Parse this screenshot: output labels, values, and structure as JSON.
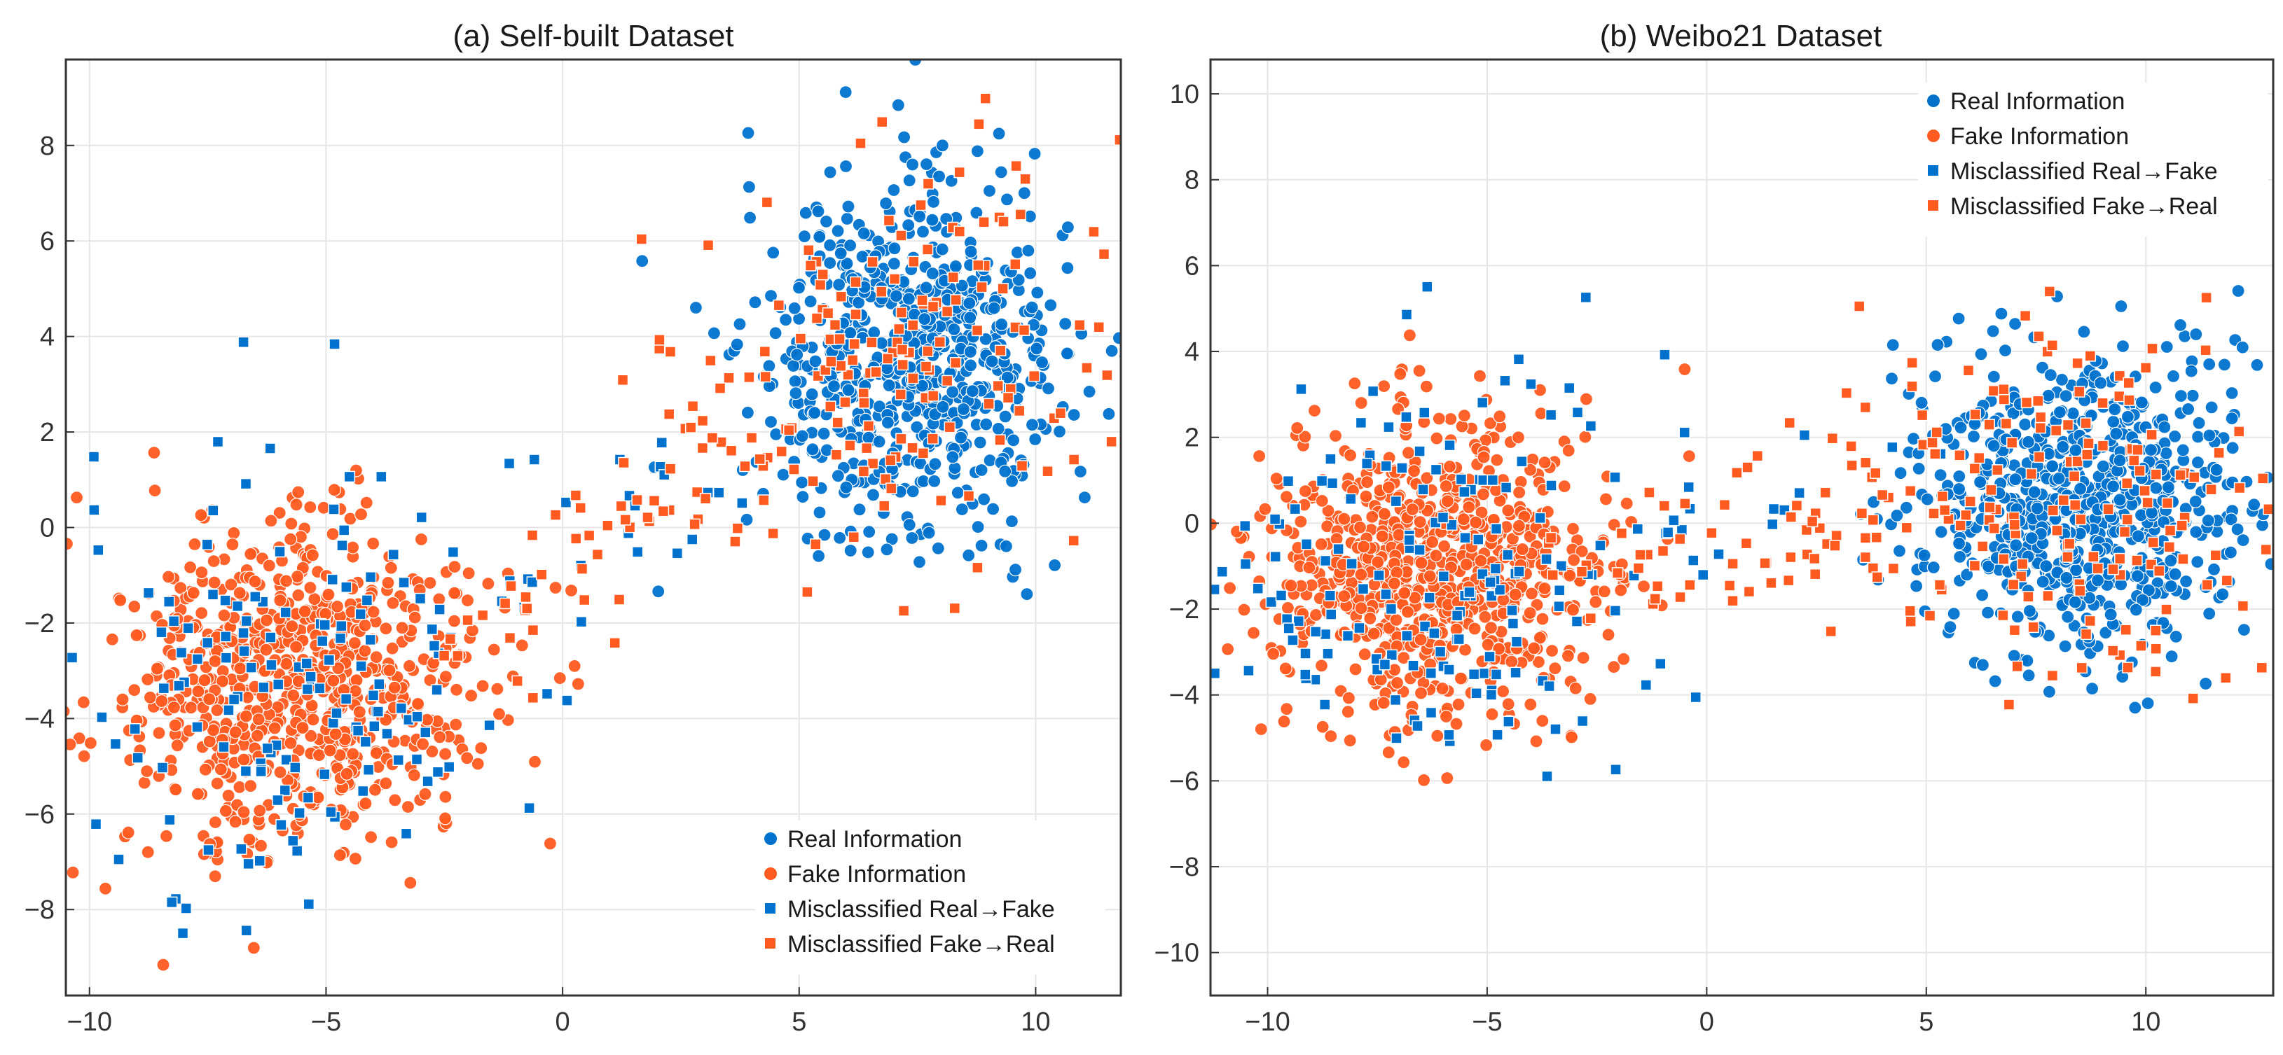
{
  "colors": {
    "real": "#0072CE",
    "fake": "#FF5A1F"
  },
  "chart_data": [
    {
      "type": "scatter",
      "title": "(a) Self-built Dataset",
      "xlabel": "",
      "ylabel": "",
      "xlim": [
        -10.5,
        11.8
      ],
      "ylim": [
        -9.8,
        9.8
      ],
      "xticks": [
        -10,
        -5,
        0,
        5,
        10
      ],
      "xtick_labels": [
        "−10",
        "−5",
        "0",
        "5",
        "10"
      ],
      "yticks": [
        -8,
        -6,
        -4,
        -2,
        0,
        2,
        4,
        6,
        8
      ],
      "ytick_labels": [
        "−8",
        "−6",
        "−4",
        "−2",
        "0",
        "2",
        "4",
        "6",
        "8"
      ],
      "grid": true,
      "legend_position": "bottom-right",
      "series": [
        {
          "name": "Real Information",
          "marker": "circle",
          "color": "real",
          "cluster": {
            "center": [
              7.3,
              3.5
            ],
            "spread": [
              1.8,
              2.0
            ],
            "count": 700
          }
        },
        {
          "name": "Fake Information",
          "marker": "circle",
          "color": "fake",
          "cluster": {
            "center": [
              -5.6,
              -3.2
            ],
            "spread": [
              2.1,
              1.9
            ],
            "count": 750
          }
        },
        {
          "name": "Misclassified Real→Fake",
          "marker": "square",
          "color": "real",
          "cluster": {
            "center": [
              -5.8,
              -3.0
            ],
            "spread": [
              2.7,
              2.6
            ],
            "count": 150
          },
          "bridge": {
            "from": [
              -3.0,
              -2.0
            ],
            "to": [
              4.0,
              1.5
            ],
            "count": 20
          }
        },
        {
          "name": "Misclassified Fake→Real",
          "marker": "square",
          "color": "fake",
          "cluster": {
            "center": [
              7.0,
              3.3
            ],
            "spread": [
              2.5,
              2.5
            ],
            "count": 160
          },
          "bridge": {
            "from": [
              -2.0,
              -2.5
            ],
            "to": [
              4.0,
              2.5
            ],
            "count": 55
          }
        }
      ]
    },
    {
      "type": "scatter",
      "title": "(b) Weibo21 Dataset",
      "xlabel": "",
      "ylabel": "",
      "xlim": [
        -11.3,
        12.9
      ],
      "ylim": [
        -11.0,
        10.8
      ],
      "xticks": [
        -10,
        -5,
        0,
        5,
        10
      ],
      "xtick_labels": [
        "−10",
        "−5",
        "0",
        "5",
        "10"
      ],
      "yticks": [
        -10,
        -8,
        -6,
        -4,
        -2,
        0,
        2,
        4,
        6,
        8,
        10
      ],
      "ytick_labels": [
        "−10",
        "−8",
        "−6",
        "−4",
        "−2",
        "0",
        "2",
        "4",
        "6",
        "8",
        "10"
      ],
      "grid": true,
      "legend_position": "top-right",
      "series": [
        {
          "name": "Real Information",
          "marker": "circle",
          "color": "real",
          "cluster": {
            "center": [
              8.5,
              0.5
            ],
            "spread": [
              2.1,
              1.9
            ],
            "count": 750
          }
        },
        {
          "name": "Fake Information",
          "marker": "circle",
          "color": "fake",
          "cluster": {
            "center": [
              -6.0,
              -1.0
            ],
            "spread": [
              2.1,
              2.0
            ],
            "count": 800
          }
        },
        {
          "name": "Misclassified Real→Fake",
          "marker": "square",
          "color": "real",
          "cluster": {
            "center": [
              -6.2,
              -1.0
            ],
            "spread": [
              3.0,
              2.6
            ],
            "count": 170
          },
          "bridge": {
            "from": [
              -2.5,
              -1.0
            ],
            "to": [
              4.0,
              1.0
            ],
            "count": 15
          }
        },
        {
          "name": "Misclassified Fake→Real",
          "marker": "square",
          "color": "fake",
          "cluster": {
            "center": [
              8.3,
              0.7
            ],
            "spread": [
              2.7,
              2.5
            ],
            "count": 160
          },
          "bridge": {
            "from": [
              -2.0,
              -1.0
            ],
            "to": [
              5.0,
              0.5
            ],
            "count": 70
          }
        }
      ]
    }
  ]
}
